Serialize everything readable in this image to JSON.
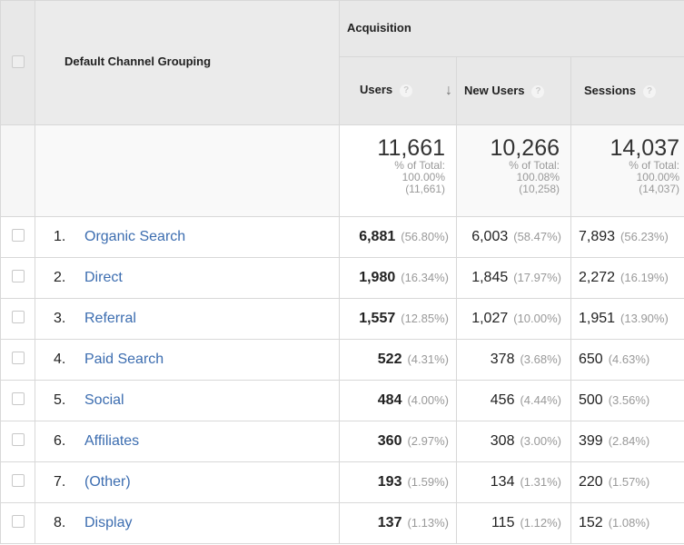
{
  "header": {
    "dimension": "Default Channel Grouping",
    "group": "Acquisition",
    "columns": [
      {
        "label": "Users",
        "sorted": true,
        "sort_icon": "arrow-down-icon"
      },
      {
        "label": "New Users"
      },
      {
        "label": "Sessions"
      }
    ],
    "help_glyph": "?",
    "sort_glyph": "↓"
  },
  "totals": [
    {
      "value": "11,661",
      "label": "% of Total:",
      "pct": "100.00%",
      "of": "(11,661)"
    },
    {
      "value": "10,266",
      "label": "% of Total:",
      "pct": "100.08%",
      "of": "(10,258)"
    },
    {
      "value": "14,037",
      "label": "% of Total:",
      "pct": "100.00%",
      "of": "(14,037)"
    }
  ],
  "rows": [
    {
      "idx": "1.",
      "name": "Organic Search",
      "users": "6,881",
      "users_pct": "(56.80%)",
      "new": "6,003",
      "new_pct": "(58.47%)",
      "sessions": "7,893",
      "sessions_pct": "(56.23%)"
    },
    {
      "idx": "2.",
      "name": "Direct",
      "users": "1,980",
      "users_pct": "(16.34%)",
      "new": "1,845",
      "new_pct": "(17.97%)",
      "sessions": "2,272",
      "sessions_pct": "(16.19%)"
    },
    {
      "idx": "3.",
      "name": "Referral",
      "users": "1,557",
      "users_pct": "(12.85%)",
      "new": "1,027",
      "new_pct": "(10.00%)",
      "sessions": "1,951",
      "sessions_pct": "(13.90%)"
    },
    {
      "idx": "4.",
      "name": "Paid Search",
      "users": "522",
      "users_pct": "(4.31%)",
      "new": "378",
      "new_pct": "(3.68%)",
      "sessions": "650",
      "sessions_pct": "(4.63%)"
    },
    {
      "idx": "5.",
      "name": "Social",
      "users": "484",
      "users_pct": "(4.00%)",
      "new": "456",
      "new_pct": "(4.44%)",
      "sessions": "500",
      "sessions_pct": "(3.56%)"
    },
    {
      "idx": "6.",
      "name": "Affiliates",
      "users": "360",
      "users_pct": "(2.97%)",
      "new": "308",
      "new_pct": "(3.00%)",
      "sessions": "399",
      "sessions_pct": "(2.84%)"
    },
    {
      "idx": "7.",
      "name": "(Other)",
      "users": "193",
      "users_pct": "(1.59%)",
      "new": "134",
      "new_pct": "(1.31%)",
      "sessions": "220",
      "sessions_pct": "(1.57%)"
    },
    {
      "idx": "8.",
      "name": "Display",
      "users": "137",
      "users_pct": "(1.13%)",
      "new": "115",
      "new_pct": "(1.12%)",
      "sessions": "152",
      "sessions_pct": "(1.08%)"
    }
  ]
}
